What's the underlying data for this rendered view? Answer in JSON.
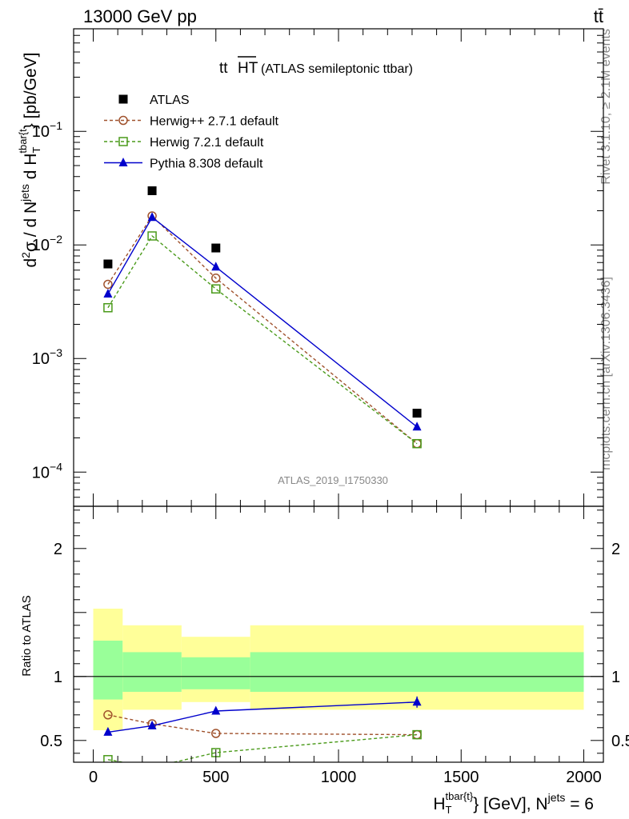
{
  "header": {
    "energy_label": "13000 GeV pp",
    "process_label": "tt̄"
  },
  "side_text": {
    "rivet": "Rivet 3.1.10, ≥ 2.1M events",
    "mcplots": "mcplots.cern.ch [arXiv:1306.3436]"
  },
  "chart_data": [
    {
      "type": "line",
      "title_main": "tt",
      "title_over": "HT",
      "title_sub": "(ATLAS semileptonic ttbar)",
      "watermark": "ATLAS_2019_I1750330",
      "ylabel": "d²σ / d Nʲᵉᵗˢ d Hₜᵗᵇᵃʳ⁽ᵗ⁾} [pb/GeV]",
      "ylabel_parts": {
        "a": "d",
        "a_sup": "2",
        "b": "σ / d N",
        "b_sup": "jets",
        "c": " d H",
        "c_sup": "tbar{t",
        "c_sub": "T",
        "d": "} [pb/GeV]"
      },
      "yscale": "log",
      "xlim": [
        -80,
        2080
      ],
      "ylim": [
        5e-05,
        0.8
      ],
      "yticks": [
        {
          "value": 0.1,
          "base": "10",
          "exp": "−1"
        },
        {
          "value": 0.01,
          "base": "10",
          "exp": "−2"
        },
        {
          "value": 0.001,
          "base": "10",
          "exp": "−3"
        },
        {
          "value": 0.0001,
          "base": "10",
          "exp": "−4"
        }
      ],
      "legend_position": "top-left",
      "series": [
        {
          "name": "ATLAS",
          "marker": "filled-square",
          "color": "#000000",
          "line": "none",
          "x": [
            60,
            240,
            500,
            1320
          ],
          "y": [
            0.0068,
            0.03,
            0.0094,
            0.00033
          ]
        },
        {
          "name": "Herwig++ 2.7.1 default",
          "marker": "open-circle",
          "color": "#a0522d",
          "line": "dashed",
          "x": [
            60,
            240,
            500,
            1320
          ],
          "y": [
            0.0045,
            0.018,
            0.0051,
            0.000178
          ]
        },
        {
          "name": "Herwig 7.2.1 default",
          "marker": "open-square",
          "color": "#4a9a1a",
          "line": "dashed",
          "x": [
            60,
            240,
            500,
            1320
          ],
          "y": [
            0.0028,
            0.012,
            0.0041,
            0.000178
          ]
        },
        {
          "name": "Pythia 8.308 default",
          "marker": "filled-triangle",
          "color": "#0000cc",
          "line": "solid",
          "x": [
            60,
            240,
            500,
            1320
          ],
          "y": [
            0.0037,
            0.0175,
            0.0064,
            0.00025
          ]
        }
      ]
    },
    {
      "type": "line",
      "ylabel": "Ratio to ATLAS",
      "xlabel_parts": {
        "a": "H",
        "a_sup": "tbar{t}",
        "a_sub": "T",
        "b": "} [GeV], N",
        "b_sup": "jets",
        "c": " = 6"
      },
      "xlim": [
        -80,
        2080
      ],
      "ylim": [
        0.33,
        2.33
      ],
      "xticks": [
        0,
        500,
        1000,
        1500,
        2000
      ],
      "yticks": [
        0.5,
        1,
        2
      ],
      "bands": {
        "bins": [
          [
            0,
            120
          ],
          [
            120,
            360
          ],
          [
            360,
            640
          ],
          [
            640,
            2000
          ]
        ],
        "outer": [
          [
            0.58,
            1.53
          ],
          [
            0.74,
            1.4
          ],
          [
            0.8,
            1.31
          ],
          [
            0.74,
            1.4
          ]
        ],
        "inner": [
          [
            0.82,
            1.28
          ],
          [
            0.88,
            1.19
          ],
          [
            0.9,
            1.15
          ],
          [
            0.88,
            1.19
          ]
        ],
        "outer_color": "#ffff99",
        "inner_color": "#99ff99"
      },
      "series": [
        {
          "name": "Herwig++ 2.7.1 default",
          "color": "#a0522d",
          "marker": "open-circle",
          "line": "dashed",
          "x": [
            60,
            240,
            500,
            1320
          ],
          "y": [
            0.7,
            0.63,
            0.555,
            0.545
          ]
        },
        {
          "name": "Herwig 7.2.1 default",
          "color": "#4a9a1a",
          "marker": "open-square",
          "line": "dashed",
          "x": [
            60,
            240,
            500,
            1320
          ],
          "y": [
            0.35,
            0.29,
            0.405,
            0.545
          ]
        },
        {
          "name": "Pythia 8.308 default",
          "color": "#0000cc",
          "marker": "filled-triangle",
          "line": "solid",
          "x": [
            60,
            240,
            500,
            1320
          ],
          "y": [
            0.565,
            0.615,
            0.73,
            0.8
          ]
        }
      ]
    }
  ]
}
